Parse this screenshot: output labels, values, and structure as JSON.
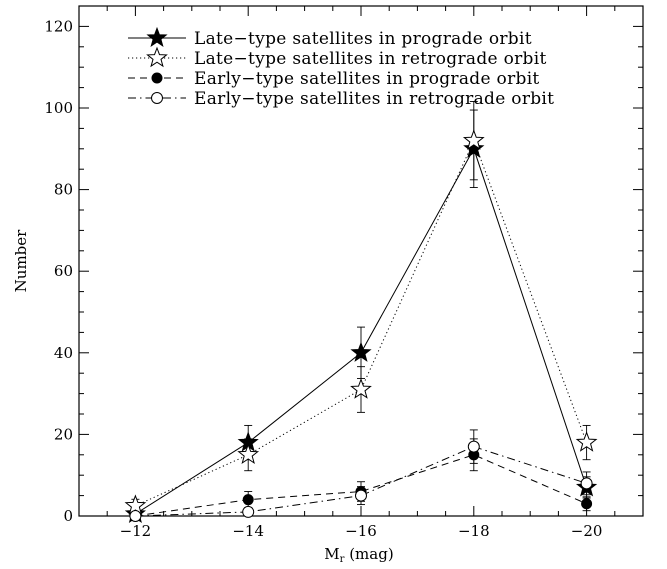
{
  "chart_data": {
    "type": "line",
    "xlabel": "M",
    "xlabel_sub": "r",
    "xlabel_unit": " (mag)",
    "ylabel": "Number",
    "xlim": [
      -11,
      -21
    ],
    "ylim": [
      0,
      125
    ],
    "x_ticks": [
      -12,
      -14,
      -16,
      -18,
      -20
    ],
    "x_tick_labels": [
      "−12",
      "−14",
      "−16",
      "−18",
      "−20"
    ],
    "y_ticks": [
      0,
      20,
      40,
      60,
      80,
      100,
      120
    ],
    "y_tick_labels": [
      "0",
      "20",
      "40",
      "60",
      "80",
      "100",
      "120"
    ],
    "grid": false,
    "legend_position": "top-left",
    "series": [
      {
        "name": "Late−type satellites in prograde orbit",
        "marker": "filled-star",
        "line": "solid",
        "x": [
          -12,
          -14,
          -16,
          -18,
          -20
        ],
        "y": [
          0.5,
          18,
          40,
          90,
          7
        ],
        "err": [
          1.0,
          4.2,
          6.3,
          9.5,
          2.6
        ]
      },
      {
        "name": "Late−type satellites in retrograde orbit",
        "marker": "open-star",
        "line": "dotted",
        "x": [
          -12,
          -14,
          -16,
          -18,
          -20
        ],
        "y": [
          2.5,
          15,
          31,
          92,
          18
        ],
        "err": [
          1.6,
          3.9,
          5.6,
          9.6,
          4.2
        ]
      },
      {
        "name": "Early−type satellites in prograde orbit",
        "marker": "filled-circle",
        "line": "dashed",
        "x": [
          -12,
          -14,
          -16,
          -18,
          -20
        ],
        "y": [
          0,
          4,
          6,
          15,
          3
        ],
        "err": [
          0,
          2.0,
          2.4,
          3.9,
          1.7
        ]
      },
      {
        "name": "Early−type satellites in retrograde orbit",
        "marker": "open-circle",
        "line": "dashdot",
        "x": [
          -12,
          -14,
          -16,
          -18,
          -20
        ],
        "y": [
          0,
          1,
          5,
          17,
          8
        ],
        "err": [
          0,
          1.0,
          2.2,
          4.1,
          2.8
        ]
      }
    ]
  }
}
